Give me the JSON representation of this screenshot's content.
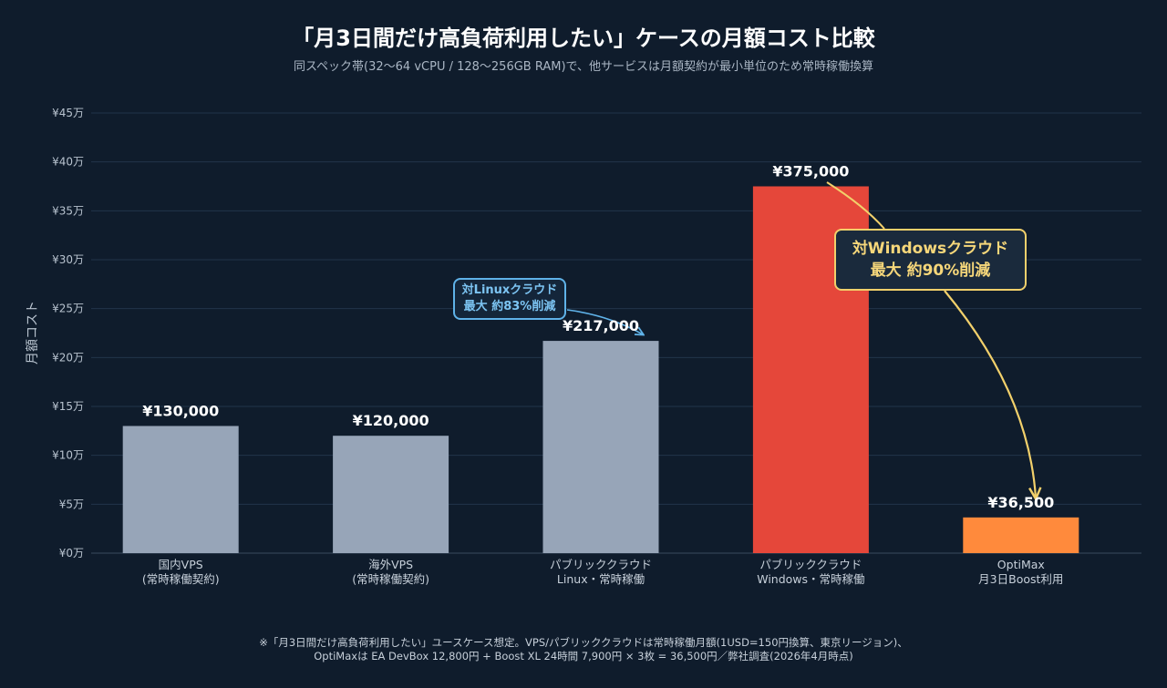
{
  "header": {
    "title": "「月3日間だけ高負荷利用したい」ケースの月額コスト比較",
    "subtitle": "同スペック帯(32〜64 vCPU / 128〜256GB RAM)で、他サービスは月額契約が最小単位のため常時稼働換算"
  },
  "chart_data": {
    "type": "bar",
    "categories": [
      [
        "国内VPS",
        "(常時稼働契約)"
      ],
      [
        "海外VPS",
        "(常時稼働契約)"
      ],
      [
        "パブリッククラウド",
        "Linux・常時稼働"
      ],
      [
        "パブリッククラウド",
        "Windows・常時稼働"
      ],
      [
        "OptiMax",
        "月3日Boost利用"
      ]
    ],
    "values": [
      130000,
      120000,
      217000,
      375000,
      36500
    ],
    "value_labels": [
      "¥130,000",
      "¥120,000",
      "¥217,000",
      "¥375,000",
      "¥36,500"
    ],
    "colors": [
      "#97a5b8",
      "#97a5b8",
      "#97a5b8",
      "#e5473a",
      "#ff8a3c"
    ],
    "ylabel": "月額コスト",
    "ylim": [
      0,
      450000
    ],
    "yticks": [
      0,
      50000,
      100000,
      150000,
      200000,
      250000,
      300000,
      350000,
      400000,
      450000
    ],
    "ytick_labels": [
      "¥0万",
      "¥5万",
      "¥10万",
      "¥15万",
      "¥20万",
      "¥25万",
      "¥30万",
      "¥35万",
      "¥40万",
      "¥45万"
    ],
    "grid": true,
    "annotations": [
      {
        "lines": [
          "対Linuxクラウド",
          "最大 約83%削減"
        ],
        "color": "#5fb2e8"
      },
      {
        "lines": [
          "対Windowsクラウド",
          "最大 約90%削減"
        ],
        "color": "#f2d06b"
      }
    ]
  },
  "footnote": {
    "line1": "※「月3日間だけ高負荷利用したい」ユースケース想定。VPS/パブリッククラウドは常時稼働月額(1USD=150円換算、東京リージョン)、",
    "line2": "OptiMaxは EA DevBox 12,800円 + Boost XL 24時間 7,900円 × 3枚 = 36,500円／弊社調査(2026年4月時点)"
  }
}
